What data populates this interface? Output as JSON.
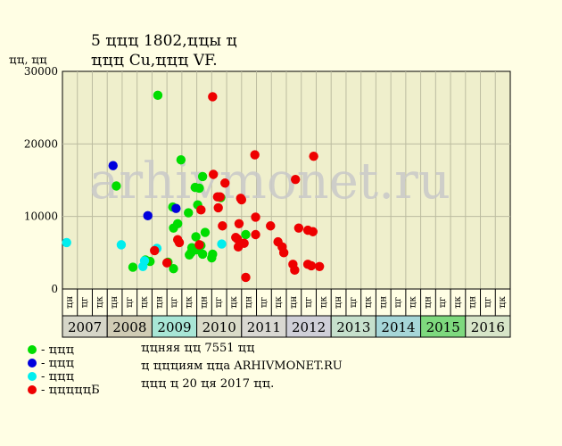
{
  "header": {
    "title_line1": "5 ҵҵҵ 1802,ҵҵы ҵ",
    "title_line2": "ҵҵҵ Cu,ҵҵҵ VF."
  },
  "watermark": "arhivmonet.ru",
  "footer": {
    "line1": "ҵҵняя ҵҵ 7551 ҵҵ",
    "line2": "ҵ ҵҵҵиям ҵҵа ARHIVMONET.RU",
    "line3": "ҵҵҵ ҵ 20 ҵя 2017 ҵҵ."
  },
  "legend": [
    {
      "label": "- ҵҵҵ",
      "color": "#00dd00"
    },
    {
      "label": "- ҵҵҵ",
      "color": "#0000dd"
    },
    {
      "label": "- ҵҵҵ",
      "color": "#00eeee"
    },
    {
      "label": "- ҵҵҵҵҵБ",
      "color": "#ee0000"
    }
  ],
  "chart_data": {
    "type": "scatter",
    "ylabel": "ҵҵ, ҵҵ",
    "ylim": [
      0,
      30000
    ],
    "yticks": [
      0,
      10000,
      20000,
      30000
    ],
    "grid": true,
    "month_labels": [
      "ҵн",
      "ҵг",
      "ҵк"
    ],
    "years": [
      {
        "label": "2007",
        "color": "#d6d6c8"
      },
      {
        "label": "2008",
        "color": "#d0ccb4"
      },
      {
        "label": "2009",
        "color": "#a8e6d6"
      },
      {
        "label": "2010",
        "color": "#dadbc8"
      },
      {
        "label": "2011",
        "color": "#d9d8d2"
      },
      {
        "label": "2012",
        "color": "#cfcfd8"
      },
      {
        "label": "2013",
        "color": "#c6e0cc"
      },
      {
        "label": "2014",
        "color": "#a6d6d8"
      },
      {
        "label": "2015",
        "color": "#7ed97e"
      },
      {
        "label": "2016",
        "color": "#d7e5c8"
      }
    ],
    "series": [
      {
        "color": "#00dd00",
        "points": [
          [
            3.61,
            14200
          ],
          [
            4.72,
            3000
          ],
          [
            5.56,
            4000
          ],
          [
            5.87,
            3800
          ],
          [
            6.39,
            26700
          ],
          [
            7.07,
            3700
          ],
          [
            7.39,
            11300
          ],
          [
            7.44,
            8400
          ],
          [
            7.44,
            2800
          ],
          [
            7.72,
            9000
          ],
          [
            7.94,
            17800
          ],
          [
            8.44,
            10500
          ],
          [
            8.5,
            4700
          ],
          [
            8.61,
            5000
          ],
          [
            8.67,
            5700
          ],
          [
            8.78,
            5500
          ],
          [
            8.89,
            14000
          ],
          [
            8.94,
            7200
          ],
          [
            9.0,
            5400
          ],
          [
            9.06,
            11600
          ],
          [
            9.17,
            13900
          ],
          [
            9.28,
            6000
          ],
          [
            9.39,
            15500
          ],
          [
            9.39,
            4800
          ],
          [
            9.56,
            7800
          ],
          [
            10.0,
            4300
          ],
          [
            10.06,
            4800
          ],
          [
            10.61,
            12600
          ],
          [
            12.28,
            7500
          ]
        ]
      },
      {
        "color": "#0000dd",
        "points": [
          [
            3.39,
            17000
          ],
          [
            5.72,
            10100
          ],
          [
            7.61,
            11100
          ]
        ]
      },
      {
        "color": "#00eeee",
        "points": [
          [
            0.28,
            6400
          ],
          [
            3.94,
            6100
          ],
          [
            5.39,
            3100
          ],
          [
            5.5,
            3900
          ],
          [
            6.33,
            5600
          ],
          [
            10.67,
            6200
          ]
        ]
      },
      {
        "color": "#ee0000",
        "points": [
          [
            6.17,
            5300
          ],
          [
            7.0,
            3600
          ],
          [
            7.72,
            6800
          ],
          [
            7.83,
            6400
          ],
          [
            9.17,
            6100
          ],
          [
            9.28,
            10900
          ],
          [
            10.06,
            26500
          ],
          [
            10.11,
            15800
          ],
          [
            10.39,
            12700
          ],
          [
            10.44,
            11200
          ],
          [
            10.56,
            12700
          ],
          [
            10.72,
            8700
          ],
          [
            10.89,
            14600
          ],
          [
            11.61,
            7100
          ],
          [
            11.72,
            6900
          ],
          [
            11.78,
            5800
          ],
          [
            11.83,
            9000
          ],
          [
            11.94,
            12500
          ],
          [
            12.0,
            12300
          ],
          [
            12.17,
            6300
          ],
          [
            12.28,
            1600
          ],
          [
            12.89,
            18500
          ],
          [
            12.94,
            7500
          ],
          [
            12.94,
            9900
          ],
          [
            13.94,
            8700
          ],
          [
            14.44,
            6500
          ],
          [
            14.72,
            5800
          ],
          [
            14.83,
            5000
          ],
          [
            15.44,
            3400
          ],
          [
            15.56,
            2600
          ],
          [
            15.61,
            15100
          ],
          [
            15.83,
            8400
          ],
          [
            16.44,
            8100
          ],
          [
            16.44,
            3400
          ],
          [
            16.67,
            3200
          ],
          [
            16.78,
            7900
          ],
          [
            16.83,
            18300
          ],
          [
            17.22,
            3100
          ]
        ]
      }
    ]
  }
}
